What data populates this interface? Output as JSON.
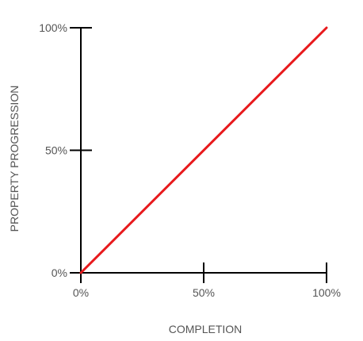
{
  "chart_data": {
    "type": "line",
    "title": "",
    "xlabel": "COMPLETION",
    "ylabel": "PROPERTY PROGRESSION",
    "xlim": [
      0,
      100
    ],
    "ylim": [
      0,
      100
    ],
    "grid": false,
    "x_ticks": [
      {
        "value": 0,
        "label": "0%"
      },
      {
        "value": 50,
        "label": "50%"
      },
      {
        "value": 100,
        "label": "100%"
      }
    ],
    "y_ticks": [
      {
        "value": 0,
        "label": "0%"
      },
      {
        "value": 50,
        "label": "50%"
      },
      {
        "value": 100,
        "label": "100%"
      }
    ],
    "series": [
      {
        "color": "#e8191c",
        "points": [
          {
            "x": 0,
            "y": 0
          },
          {
            "x": 100,
            "y": 100
          }
        ]
      }
    ],
    "axis_color": "#000000"
  }
}
